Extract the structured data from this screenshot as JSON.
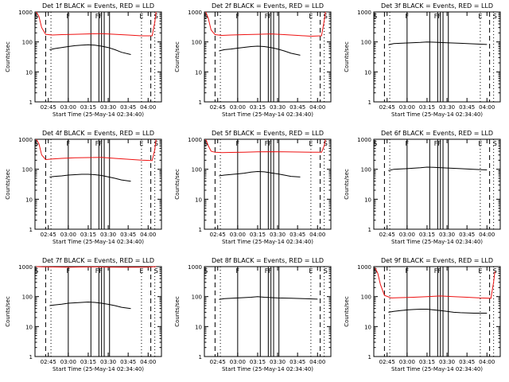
{
  "colors": {
    "background": "#ffffff",
    "axis": "#000000",
    "events_series": "#000000",
    "lld_series": "#ee1111"
  },
  "chart_data": [
    {
      "type": "line",
      "title": "Det 1f BLACK = Events, RED = LLD",
      "xlabel": "Start Time (25-May-14 02:34:40)",
      "ylabel": "Counts/sec",
      "y_scale": "log",
      "ylim": [
        1,
        1000
      ],
      "x_ticks": [
        "02:45",
        "03:00",
        "03:15",
        "03:30",
        "03:45",
        "04:00"
      ],
      "y_ticks": [
        "1",
        "10",
        "100",
        "1000"
      ],
      "markers": [
        "S",
        "F",
        "FF",
        "E",
        "S"
      ],
      "series": [
        {
          "name": "BLACK",
          "x": [
            "02:46",
            "02:50",
            "02:55",
            "03:00",
            "03:05",
            "03:10",
            "03:15",
            "03:20",
            "03:25",
            "03:30",
            "03:35",
            "03:40",
            "03:47"
          ],
          "values": [
            55,
            60,
            65,
            70,
            75,
            78,
            80,
            78,
            72,
            65,
            55,
            45,
            38
          ]
        },
        {
          "name": "RED",
          "x": [
            "02:36",
            "02:38",
            "02:40",
            "02:43",
            "02:48",
            "02:55",
            "03:05",
            "03:15",
            "03:25",
            "03:35",
            "03:45",
            "03:55",
            "04:03",
            "04:05",
            "04:06"
          ],
          "values": [
            1000,
            700,
            300,
            180,
            170,
            175,
            180,
            185,
            190,
            180,
            170,
            160,
            160,
            450,
            1000
          ]
        }
      ]
    },
    {
      "type": "line",
      "title": "Det 2f BLACK = Events, RED = LLD",
      "xlabel": "Start Time (25-May-14 02:34:40)",
      "ylabel": "Counts/sec",
      "y_scale": "log",
      "ylim": [
        1,
        1000
      ],
      "x_ticks": [
        "02:45",
        "03:00",
        "03:15",
        "03:30",
        "03:45",
        "04:00"
      ],
      "y_ticks": [
        "1",
        "10",
        "100",
        "1000"
      ],
      "markers": [
        "S",
        "F",
        "FF",
        "E",
        "S"
      ],
      "series": [
        {
          "name": "BLACK",
          "x": [
            "02:46",
            "02:50",
            "02:55",
            "03:00",
            "03:05",
            "03:10",
            "03:15",
            "03:20",
            "03:25",
            "03:30",
            "03:35",
            "03:40",
            "03:47"
          ],
          "values": [
            50,
            55,
            58,
            62,
            66,
            70,
            72,
            70,
            65,
            58,
            50,
            42,
            36
          ]
        },
        {
          "name": "RED",
          "x": [
            "02:36",
            "02:38",
            "02:40",
            "02:43",
            "02:48",
            "02:55",
            "03:05",
            "03:15",
            "03:25",
            "03:35",
            "03:45",
            "03:55",
            "04:03",
            "04:05",
            "04:06"
          ],
          "values": [
            1000,
            600,
            250,
            175,
            165,
            170,
            175,
            180,
            185,
            175,
            165,
            155,
            160,
            500,
            1000
          ]
        }
      ]
    },
    {
      "type": "line",
      "title": "Det 3f BLACK = Events, RED = LLD",
      "xlabel": "Start Time (25-May-14 02:34:40)",
      "ylabel": "Counts/sec",
      "y_scale": "log",
      "ylim": [
        1,
        1000
      ],
      "x_ticks": [
        "02:45",
        "03:00",
        "03:15",
        "03:30",
        "03:45",
        "04:00"
      ],
      "y_ticks": [
        "1",
        "10",
        "100",
        "1000"
      ],
      "markers": [
        "S",
        "F",
        "FF",
        "E",
        "S"
      ],
      "series": [
        {
          "name": "BLACK",
          "x": [
            "02:46",
            "02:50",
            "03:00",
            "03:10",
            "03:15",
            "03:20",
            "03:30",
            "03:40",
            "03:50",
            "04:00"
          ],
          "values": [
            80,
            88,
            92,
            96,
            100,
            98,
            94,
            90,
            86,
            82
          ]
        }
      ]
    },
    {
      "type": "line",
      "title": "Det 4f BLACK = Events, RED = LLD",
      "xlabel": "Start Time (25-May-14 02:34:40)",
      "ylabel": "Counts/sec",
      "y_scale": "log",
      "ylim": [
        1,
        1000
      ],
      "x_ticks": [
        "02:45",
        "03:00",
        "03:15",
        "03:30",
        "03:45",
        "04:00"
      ],
      "y_ticks": [
        "1",
        "10",
        "100",
        "1000"
      ],
      "markers": [
        "S",
        "F",
        "FF",
        "E",
        "S"
      ],
      "series": [
        {
          "name": "BLACK",
          "x": [
            "02:46",
            "02:50",
            "02:55",
            "03:00",
            "03:05",
            "03:10",
            "03:15",
            "03:20",
            "03:25",
            "03:30",
            "03:35",
            "03:40",
            "03:47"
          ],
          "values": [
            55,
            58,
            60,
            64,
            66,
            68,
            68,
            66,
            62,
            56,
            50,
            44,
            40
          ]
        },
        {
          "name": "RED",
          "x": [
            "02:36",
            "02:38",
            "02:40",
            "02:43",
            "02:48",
            "02:55",
            "03:05",
            "03:15",
            "03:25",
            "03:35",
            "03:45",
            "03:55",
            "04:03",
            "04:05",
            "04:06"
          ],
          "values": [
            1000,
            700,
            300,
            210,
            220,
            230,
            240,
            245,
            250,
            230,
            215,
            200,
            195,
            450,
            1000
          ]
        }
      ]
    },
    {
      "type": "line",
      "title": "Det 5f BLACK = Events, RED = LLD",
      "xlabel": "Start Time (25-May-14 02:34:40)",
      "ylabel": "Counts/sec",
      "y_scale": "log",
      "ylim": [
        1,
        1000
      ],
      "x_ticks": [
        "02:45",
        "03:00",
        "03:15",
        "03:30",
        "03:45",
        "04:00"
      ],
      "y_ticks": [
        "1",
        "10",
        "100",
        "1000"
      ],
      "markers": [
        "S",
        "F",
        "FF",
        "E",
        "S"
      ],
      "series": [
        {
          "name": "BLACK",
          "x": [
            "02:46",
            "02:50",
            "02:55",
            "03:00",
            "03:05",
            "03:10",
            "03:15",
            "03:20",
            "03:25",
            "03:30",
            "03:35",
            "03:40",
            "03:47"
          ],
          "values": [
            60,
            64,
            67,
            70,
            74,
            80,
            84,
            82,
            76,
            70,
            64,
            58,
            55
          ]
        },
        {
          "name": "RED",
          "x": [
            "02:36",
            "02:38",
            "02:40",
            "02:43",
            "02:48",
            "02:55",
            "03:05",
            "03:15",
            "03:25",
            "03:35",
            "03:45",
            "03:55",
            "04:03",
            "04:05",
            "04:06"
          ],
          "values": [
            1000,
            600,
            400,
            370,
            360,
            365,
            370,
            380,
            385,
            380,
            375,
            370,
            370,
            600,
            1000
          ]
        }
      ]
    },
    {
      "type": "line",
      "title": "Det 6f BLACK = Events, RED = LLD",
      "xlabel": "Start Time (25-May-14 02:34:40)",
      "ylabel": "Counts/sec",
      "y_scale": "log",
      "ylim": [
        1,
        1000
      ],
      "x_ticks": [
        "02:45",
        "03:00",
        "03:15",
        "03:30",
        "03:45",
        "04:00"
      ],
      "y_ticks": [
        "1",
        "10",
        "100",
        "1000"
      ],
      "markers": [
        "S",
        "F",
        "FF",
        "E",
        "S"
      ],
      "series": [
        {
          "name": "BLACK",
          "x": [
            "02:46",
            "02:50",
            "03:00",
            "03:10",
            "03:15",
            "03:20",
            "03:30",
            "03:40",
            "03:50",
            "04:00"
          ],
          "values": [
            90,
            100,
            105,
            112,
            118,
            116,
            110,
            105,
            100,
            95
          ]
        }
      ]
    },
    {
      "type": "line",
      "title": "Det 7f BLACK = Events, RED = LLD",
      "xlabel": "Start Time (25-May-14 02:34:40)",
      "ylabel": "Counts/sec",
      "y_scale": "log",
      "ylim": [
        1,
        1000
      ],
      "x_ticks": [
        "02:45",
        "03:00",
        "03:15",
        "03:30",
        "03:45",
        "04:00"
      ],
      "y_ticks": [
        "1",
        "10",
        "100",
        "1000"
      ],
      "markers": [
        "S",
        "F",
        "FF",
        "E",
        "S"
      ],
      "series": [
        {
          "name": "BLACK",
          "x": [
            "02:46",
            "02:50",
            "02:55",
            "03:00",
            "03:05",
            "03:10",
            "03:15",
            "03:20",
            "03:25",
            "03:30",
            "03:35",
            "03:40",
            "03:47"
          ],
          "values": [
            50,
            53,
            56,
            60,
            62,
            64,
            66,
            64,
            60,
            55,
            50,
            44,
            40
          ]
        },
        {
          "name": "RED",
          "x": [
            "02:36",
            "02:40",
            "02:50",
            "03:00",
            "03:10",
            "03:20",
            "03:30",
            "03:40",
            "03:50",
            "04:00",
            "04:06"
          ],
          "values": [
            1000,
            980,
            970,
            960,
            970,
            975,
            965,
            960,
            960,
            965,
            1000
          ]
        }
      ]
    },
    {
      "type": "line",
      "title": "Det 8f BLACK = Events, RED = LLD",
      "xlabel": "Start Time (25-May-14 02:34:40)",
      "ylabel": "Counts/sec",
      "y_scale": "log",
      "ylim": [
        1,
        1000
      ],
      "x_ticks": [
        "02:45",
        "03:00",
        "03:15",
        "03:30",
        "03:45",
        "04:00"
      ],
      "y_ticks": [
        "1",
        "10",
        "100",
        "1000"
      ],
      "markers": [
        "S",
        "F",
        "FF",
        "E",
        "S"
      ],
      "series": [
        {
          "name": "BLACK",
          "x": [
            "02:46",
            "02:50",
            "03:00",
            "03:10",
            "03:15",
            "03:20",
            "03:30",
            "03:40",
            "03:50",
            "04:00"
          ],
          "values": [
            80,
            85,
            90,
            95,
            100,
            95,
            90,
            88,
            85,
            82
          ]
        }
      ]
    },
    {
      "type": "line",
      "title": "Det 9f BLACK = Events, RED = LLD",
      "xlabel": "Start Time (25-May-14 02:34:40)",
      "ylabel": "Counts/sec",
      "y_scale": "log",
      "ylim": [
        1,
        1000
      ],
      "x_ticks": [
        "02:45",
        "03:00",
        "03:15",
        "03:30",
        "03:45",
        "04:00"
      ],
      "y_ticks": [
        "1",
        "10",
        "100",
        "1000"
      ],
      "markers": [
        "S",
        "F",
        "FF",
        "E",
        "S"
      ],
      "series": [
        {
          "name": "BLACK",
          "x": [
            "02:46",
            "02:50",
            "02:55",
            "03:00",
            "03:05",
            "03:10",
            "03:15",
            "03:20",
            "03:25",
            "03:30",
            "03:35",
            "03:40",
            "03:50",
            "04:00"
          ],
          "values": [
            30,
            32,
            34,
            36,
            37,
            38,
            38,
            36,
            34,
            32,
            30,
            29,
            28,
            28
          ]
        },
        {
          "name": "RED",
          "x": [
            "02:36",
            "02:38",
            "02:40",
            "02:43",
            "02:48",
            "02:55",
            "03:05",
            "03:15",
            "03:25",
            "03:35",
            "03:45",
            "03:55",
            "04:03",
            "04:05",
            "04:06"
          ],
          "values": [
            900,
            600,
            250,
            110,
            90,
            92,
            95,
            100,
            105,
            100,
            95,
            90,
            88,
            300,
            700
          ]
        }
      ]
    }
  ]
}
